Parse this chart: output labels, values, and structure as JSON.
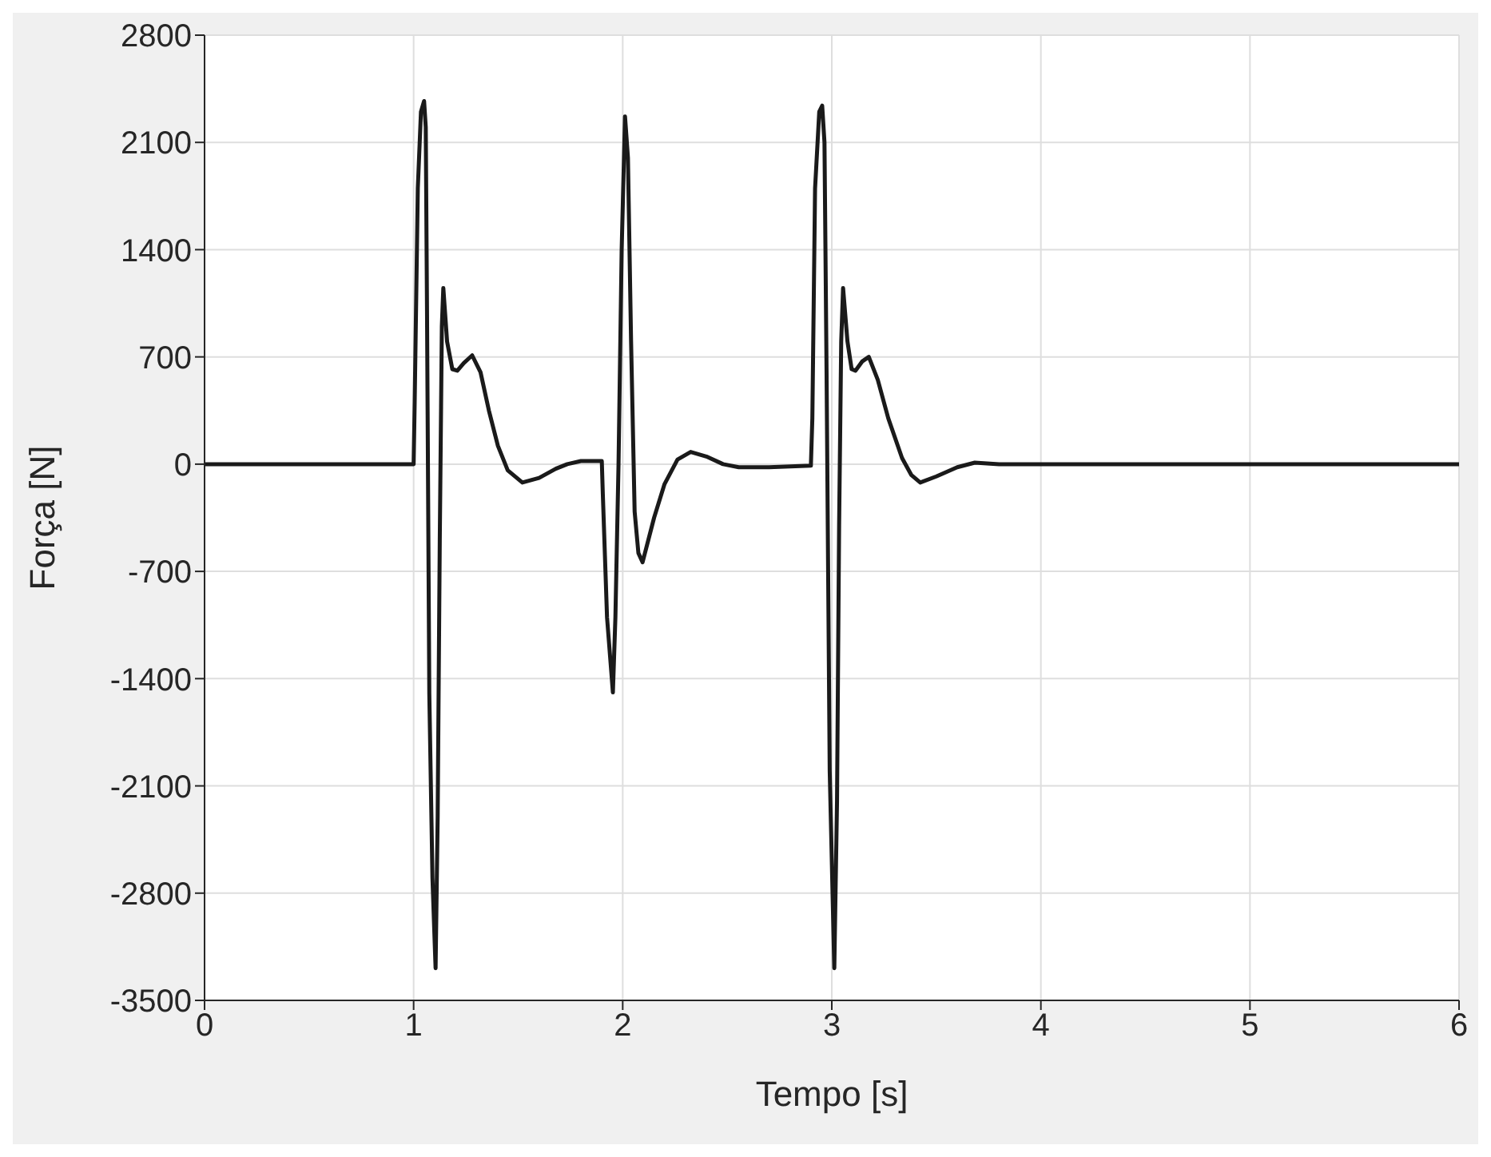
{
  "chart_data": {
    "type": "line",
    "xlabel": "Tempo [s]",
    "ylabel": "Força [N]",
    "xlim": [
      0,
      6
    ],
    "xticks": [
      0,
      1,
      2,
      3,
      4,
      5,
      6
    ],
    "ylim": [
      -3500,
      2800
    ],
    "yticks": [
      -3500,
      -2800,
      -2100,
      -1400,
      -700,
      0,
      700,
      1400,
      2100,
      2800
    ],
    "grid": true,
    "marker": "none",
    "line_style": "solid",
    "series": [
      {
        "color": "#1a1a1a",
        "x": [
          0,
          1.0,
          1.005,
          1.02,
          1.035,
          1.05,
          1.058,
          1.064,
          1.075,
          1.09,
          1.105,
          1.115,
          1.125,
          1.135,
          1.142,
          1.16,
          1.185,
          1.209,
          1.24,
          1.28,
          1.32,
          1.36,
          1.403,
          1.45,
          1.52,
          1.6,
          1.68,
          1.735,
          1.8,
          1.9,
          1.905,
          1.925,
          1.953,
          1.965,
          1.98,
          1.995,
          2.011,
          2.025,
          2.04,
          2.057,
          2.075,
          2.095,
          2.15,
          2.2,
          2.262,
          2.325,
          2.4,
          2.48,
          2.555,
          2.7,
          2.9,
          2.907,
          2.92,
          2.94,
          2.954,
          2.965,
          2.975,
          2.99,
          3.012,
          3.025,
          3.035,
          3.045,
          3.054,
          3.075,
          3.095,
          3.113,
          3.145,
          3.177,
          3.22,
          3.27,
          3.336,
          3.38,
          3.423,
          3.5,
          3.6,
          3.684,
          3.8,
          3.945,
          5,
          6
        ],
        "values": [
          0,
          0,
          400,
          1800,
          2300,
          2370,
          2200,
          1000,
          -1500,
          -2700,
          -3290,
          -2300,
          -500,
          900,
          1150,
          800,
          620,
          610,
          660,
          710,
          600,
          350,
          120,
          -40,
          -120,
          -90,
          -30,
          0,
          20,
          20,
          -200,
          -1000,
          -1490,
          -1000,
          0,
          1400,
          2270,
          2000,
          800,
          -310,
          -580,
          -640,
          -350,
          -130,
          30,
          80,
          50,
          0,
          -20,
          -20,
          -10,
          300,
          1800,
          2300,
          2340,
          2100,
          600,
          -2000,
          -3290,
          -2200,
          -400,
          800,
          1150,
          800,
          620,
          610,
          670,
          700,
          550,
          300,
          40,
          -70,
          -120,
          -80,
          -20,
          10,
          0,
          0,
          0,
          0
        ]
      }
    ]
  }
}
